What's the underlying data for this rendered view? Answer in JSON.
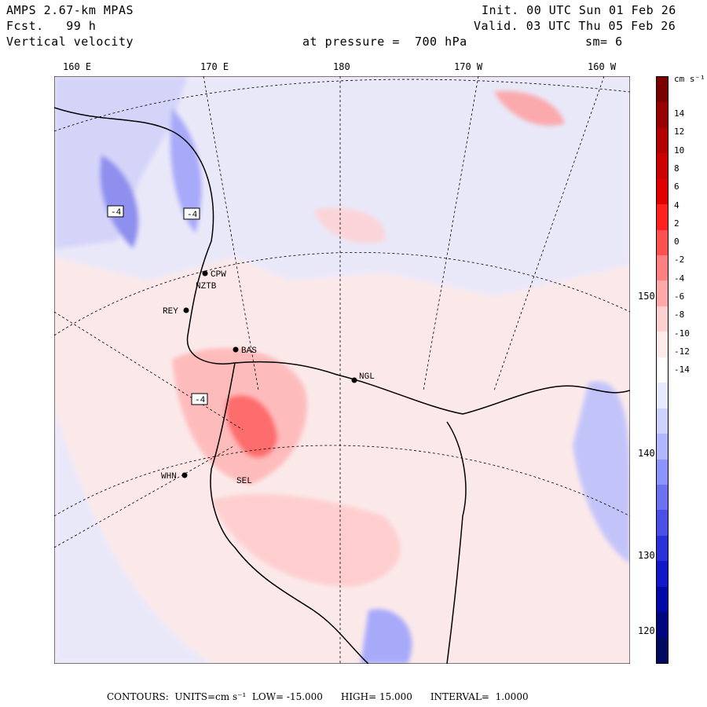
{
  "header": {
    "model": "AMPS 2.67-km MPAS",
    "forecast": "Fcst.   99 h",
    "field": "Vertical velocity",
    "init": "Init. 00 UTC Sun 01 Feb 26",
    "valid": "Valid. 03 UTC Thu 05 Feb 26",
    "pressure": "at pressure =  700 hPa",
    "smoothing": "sm= 6"
  },
  "lon_labels": [
    "160 E",
    "170 E",
    "180",
    "170 W",
    "160 W"
  ],
  "lat_labels": [
    "150 W",
    "140 W",
    "130 W",
    "120 W"
  ],
  "colorbar": {
    "units": "cm s⁻¹",
    "ticks": [
      "14",
      "12",
      "10",
      "8",
      "6",
      "4",
      "2",
      "0",
      "-2",
      "-4",
      "-6",
      "-8",
      "-10",
      "-12",
      "-14"
    ],
    "colors": [
      "#7a0000",
      "#990000",
      "#b30000",
      "#cc0000",
      "#e00000",
      "#ff2020",
      "#ff5050",
      "#ff8080",
      "#ffa8a8",
      "#ffd0d0",
      "#ffeaea",
      "#ffffff",
      "#e8eaff",
      "#cdd2ff",
      "#b0b8ff",
      "#8c95ff",
      "#6a72f0",
      "#4a50e6",
      "#2a30d8",
      "#1018c8",
      "#0008a8",
      "#000680",
      "#000a60"
    ]
  },
  "stations": [
    "CPW",
    "NZTB",
    "REY",
    "BAS",
    "NGL",
    "WHN",
    "SEL"
  ],
  "boxed_labels": [
    "-4",
    "-4",
    "-4"
  ],
  "footer": "CONTOURS:  UNITS=cm s⁻¹  LOW= -15.000      HIGH= 15.000      INTERVAL=  1.0000",
  "colors": {
    "positive": "#ff6060",
    "negative": "#6a72f0",
    "background": "#fbe9ea"
  }
}
